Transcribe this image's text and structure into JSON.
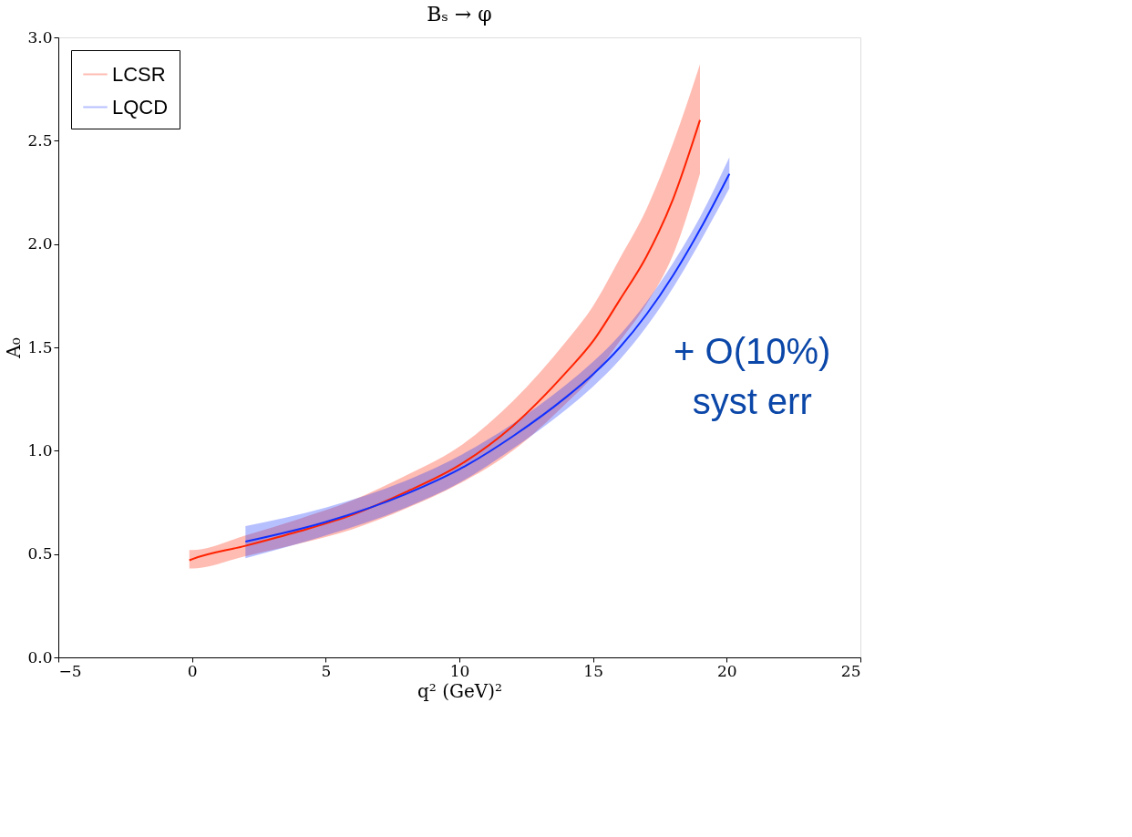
{
  "chart_data": {
    "type": "line",
    "title": "Bₛ → φ",
    "xlabel": "q² (GeV)²",
    "ylabel": "A₀",
    "series": [
      {
        "name": "LCSR",
        "color": "#ff2200",
        "x": [
          -0.1,
          0,
          2,
          4,
          6,
          8,
          10,
          12,
          14,
          15,
          16,
          17,
          18,
          19
        ],
        "values": [
          0.47,
          0.475,
          0.54,
          0.61,
          0.69,
          0.8,
          0.93,
          1.12,
          1.38,
          1.53,
          1.73,
          1.94,
          2.22,
          2.6
        ],
        "lower": [
          0.43,
          0.43,
          0.49,
          0.55,
          0.62,
          0.72,
          0.84,
          1.0,
          1.23,
          1.36,
          1.53,
          1.71,
          1.95,
          2.34
        ],
        "upper": [
          0.52,
          0.52,
          0.59,
          0.67,
          0.76,
          0.88,
          1.02,
          1.24,
          1.53,
          1.7,
          1.93,
          2.17,
          2.49,
          2.87
        ]
      },
      {
        "name": "LQCD",
        "color": "#1030ff",
        "x": [
          2,
          5,
          8,
          10,
          12,
          14,
          15,
          16,
          17,
          18,
          19,
          20.1
        ],
        "values": [
          0.56,
          0.655,
          0.79,
          0.91,
          1.07,
          1.26,
          1.37,
          1.5,
          1.66,
          1.85,
          2.07,
          2.34
        ],
        "lower": [
          0.48,
          0.59,
          0.725,
          0.845,
          1.01,
          1.2,
          1.31,
          1.44,
          1.6,
          1.79,
          2.01,
          2.27
        ],
        "upper": [
          0.635,
          0.725,
          0.855,
          0.975,
          1.13,
          1.32,
          1.43,
          1.56,
          1.72,
          1.91,
          2.13,
          2.42
        ]
      }
    ],
    "xlim": [
      -5,
      25
    ],
    "xticks": [
      -5,
      0,
      5,
      10,
      15,
      20,
      25
    ],
    "ylim": [
      0,
      3
    ],
    "yticks": [
      {
        "value": 0,
        "label": "0.0"
      },
      {
        "value": 0.5,
        "label": "0.5"
      },
      {
        "value": 1,
        "label": "1.0"
      },
      {
        "value": 1.5,
        "label": "1.5"
      },
      {
        "value": 2,
        "label": "2.0"
      },
      {
        "value": 2.5,
        "label": "2.5"
      },
      {
        "value": 3,
        "label": "3.0"
      }
    ],
    "annotations": [
      "+ O(10%)\nsyst err"
    ],
    "legend": "top left",
    "grid": false,
    "line_style": "solid",
    "marker": "none"
  }
}
